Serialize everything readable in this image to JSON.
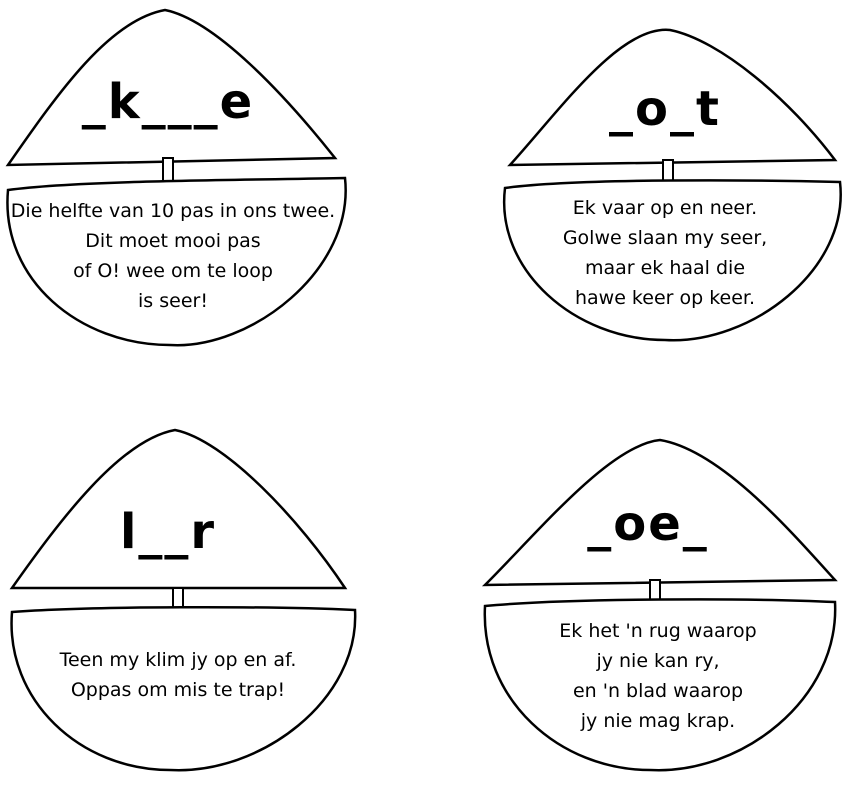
{
  "boats": [
    {
      "word": "_k___e",
      "lines": [
        "Die helfte van 10 pas in ons twee.",
        "Dit moet mooi pas",
        "of O! wee om te loop",
        "is seer!"
      ]
    },
    {
      "word": "_o_t",
      "lines": [
        "Ek vaar op en neer.",
        "Golwe slaan my seer,",
        "maar ek haal die",
        "hawe keer op keer."
      ]
    },
    {
      "word": "l__r",
      "lines": [
        "Teen my klim jy op en af.",
        "Oppas om mis te trap!"
      ]
    },
    {
      "word": "_oe_",
      "lines": [
        "Ek het 'n rug waarop",
        "jy nie kan ry,",
        "en 'n blad waarop",
        "jy nie mag krap."
      ]
    }
  ]
}
